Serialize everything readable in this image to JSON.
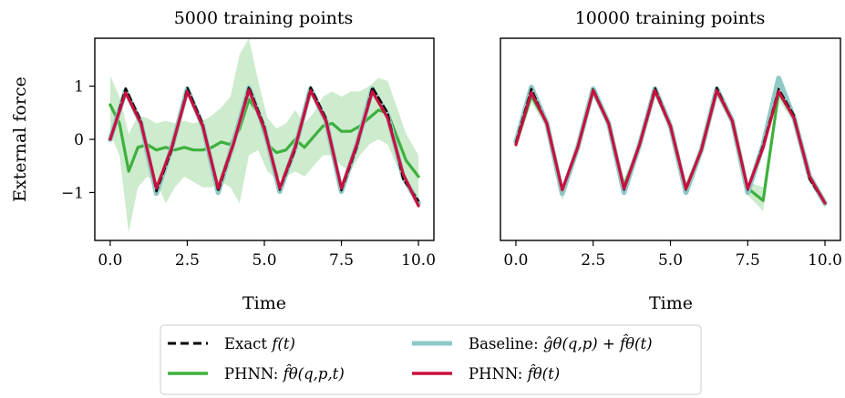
{
  "chart_data": [
    {
      "type": "line",
      "title": "5000 training points",
      "xlabel": "Time",
      "ylabel": "External force",
      "xlim": [
        -0.5,
        10.5
      ],
      "ylim": [
        -1.9,
        1.9
      ],
      "xticks": [
        "0.0",
        "2.5",
        "5.0",
        "7.5",
        "10.0"
      ],
      "yticks": [
        "1",
        "0",
        "−1"
      ],
      "series": [
        {
          "name": "Exact f(t)",
          "key": "exact",
          "x": [
            0,
            0.5,
            1.0,
            1.5,
            2.0,
            2.5,
            3.0,
            3.5,
            4.0,
            4.5,
            5.0,
            5.5,
            6.0,
            6.5,
            7.0,
            7.5,
            8.0,
            8.5,
            9.0,
            9.5,
            10.0
          ],
          "y": [
            0,
            0.96,
            0.35,
            -0.98,
            -0.2,
            0.97,
            0.3,
            -0.98,
            -0.1,
            0.99,
            0.25,
            -0.95,
            -0.2,
            0.98,
            0.4,
            -0.96,
            -0.15,
            0.98,
            0.5,
            -0.75,
            -1.15
          ]
        },
        {
          "name": "Baseline: ĝθ(q,p) + f̂θ(t)",
          "key": "baseline",
          "x": [
            0,
            0.5,
            1.0,
            1.5,
            2.0,
            2.5,
            3.0,
            3.5,
            4.0,
            4.5,
            5.0,
            5.5,
            6.0,
            6.5,
            7.0,
            7.5,
            8.0,
            8.5,
            9.0,
            9.5,
            10.0
          ],
          "y": [
            0,
            0.92,
            0.3,
            -1.02,
            -0.15,
            0.95,
            0.25,
            -1.0,
            -0.05,
            0.97,
            0.2,
            -0.98,
            -0.15,
            0.95,
            0.35,
            -0.98,
            -0.1,
            0.95,
            0.45,
            -0.7,
            -1.2
          ]
        },
        {
          "name": "PHNN: f̂θ(q,p,t)",
          "key": "phnn_qpt",
          "x": [
            0,
            0.3,
            0.6,
            0.9,
            1.2,
            1.5,
            1.8,
            2.1,
            2.4,
            2.7,
            3.0,
            3.3,
            3.6,
            3.9,
            4.2,
            4.5,
            4.8,
            5.1,
            5.4,
            5.7,
            6.0,
            6.3,
            6.6,
            6.9,
            7.2,
            7.5,
            7.8,
            8.1,
            8.4,
            8.7,
            9.0,
            9.3,
            9.6,
            10.0
          ],
          "y": [
            0.65,
            0.3,
            -0.6,
            -0.15,
            -0.1,
            -0.2,
            -0.15,
            -0.2,
            -0.15,
            -0.2,
            -0.2,
            -0.15,
            -0.05,
            -0.1,
            0.2,
            0.75,
            0.5,
            -0.1,
            -0.25,
            -0.2,
            0.0,
            -0.15,
            0.05,
            0.25,
            0.3,
            0.15,
            0.15,
            0.25,
            0.4,
            0.55,
            0.5,
            0.05,
            -0.4,
            -0.7
          ]
        },
        {
          "name": "PHNN: f̂θ(t)",
          "key": "phnn_t",
          "x": [
            0,
            0.5,
            1.0,
            1.5,
            2.0,
            2.5,
            3.0,
            3.5,
            4.0,
            4.5,
            5.0,
            5.5,
            6.0,
            6.5,
            7.0,
            7.5,
            8.0,
            8.5,
            9.0,
            9.5,
            10.0
          ],
          "y": [
            0,
            0.88,
            0.3,
            -0.92,
            -0.15,
            0.9,
            0.25,
            -0.92,
            -0.08,
            0.93,
            0.2,
            -0.92,
            -0.15,
            0.92,
            0.35,
            -0.92,
            -0.1,
            0.9,
            0.4,
            -0.65,
            -1.25
          ]
        }
      ],
      "band": {
        "key": "phnn_qpt_band",
        "x": [
          0,
          0.3,
          0.6,
          0.9,
          1.2,
          1.5,
          1.8,
          2.1,
          2.4,
          2.7,
          3.0,
          3.3,
          3.6,
          3.9,
          4.2,
          4.5,
          4.8,
          5.1,
          5.4,
          5.7,
          6.0,
          6.3,
          6.6,
          6.9,
          7.2,
          7.5,
          7.8,
          8.1,
          8.4,
          8.7,
          9.0,
          9.3,
          9.6,
          10.0
        ],
        "upper": [
          1.2,
          0.8,
          0.1,
          0.45,
          0.4,
          0.3,
          0.35,
          0.3,
          0.35,
          0.3,
          0.35,
          0.45,
          0.6,
          0.8,
          1.6,
          1.9,
          1.1,
          0.4,
          0.2,
          0.3,
          0.55,
          0.3,
          0.5,
          0.8,
          0.9,
          0.8,
          0.9,
          0.9,
          1.0,
          1.15,
          1.1,
          0.6,
          0.1,
          -0.3
        ],
        "lower": [
          0.1,
          -0.3,
          -1.75,
          -0.9,
          -0.7,
          -0.8,
          -1.2,
          -0.9,
          -0.7,
          -0.8,
          -0.9,
          -0.9,
          -0.8,
          -0.9,
          -1.2,
          -0.3,
          -0.2,
          -0.6,
          -0.75,
          -0.7,
          -0.6,
          -0.7,
          -0.5,
          -0.3,
          -0.3,
          -0.5,
          -0.6,
          -0.3,
          -0.1,
          0.0,
          -0.1,
          -0.5,
          -0.9,
          -1.1
        ]
      }
    },
    {
      "type": "line",
      "title": "10000 training points",
      "xlabel": "Time",
      "ylabel": "",
      "xlim": [
        -0.5,
        10.5
      ],
      "ylim": [
        -1.9,
        1.9
      ],
      "xticks": [
        "0.0",
        "2.5",
        "5.0",
        "7.5",
        "10.0"
      ],
      "series": [
        {
          "name": "Exact f(t)",
          "key": "exact",
          "x": [
            0,
            0.5,
            1.0,
            1.5,
            2.0,
            2.5,
            3.0,
            3.5,
            4.0,
            4.5,
            5.0,
            5.5,
            6.0,
            6.5,
            7.0,
            7.5,
            8.0,
            8.5,
            9.0,
            9.5,
            10.0
          ],
          "y": [
            -0.05,
            0.95,
            0.3,
            -0.95,
            -0.15,
            0.95,
            0.3,
            -0.95,
            -0.1,
            0.97,
            0.25,
            -0.95,
            -0.2,
            0.97,
            0.35,
            -0.95,
            -0.1,
            0.95,
            0.45,
            -0.75,
            -1.2
          ]
        },
        {
          "name": "Baseline: ĝθ(q,p) + f̂θ(t)",
          "key": "baseline",
          "x": [
            0,
            0.5,
            1.0,
            1.5,
            2.0,
            2.5,
            3.0,
            3.5,
            4.0,
            4.5,
            5.0,
            5.5,
            6.0,
            6.5,
            7.0,
            7.5,
            8.0,
            8.5,
            9.0,
            9.5,
            10.0
          ],
          "y": [
            -0.05,
            0.98,
            0.3,
            -1.02,
            -0.15,
            0.95,
            0.3,
            -1.0,
            -0.1,
            0.95,
            0.25,
            -1.0,
            -0.2,
            0.95,
            0.35,
            -1.0,
            -0.1,
            1.15,
            0.4,
            -0.7,
            -1.2
          ]
        },
        {
          "name": "PHNN: f̂θ(q,p,t)",
          "key": "phnn_qpt",
          "x": [
            0,
            0.5,
            1.0,
            1.5,
            2.0,
            2.5,
            3.0,
            3.5,
            4.0,
            4.5,
            5.0,
            5.5,
            6.0,
            6.5,
            7.0,
            7.5,
            8.0,
            8.5,
            9.0,
            9.5,
            10.0
          ],
          "y": [
            -0.1,
            0.82,
            0.3,
            -1.0,
            -0.15,
            0.9,
            0.3,
            -0.88,
            -0.1,
            0.93,
            0.25,
            -0.92,
            -0.2,
            0.9,
            0.35,
            -0.92,
            -1.15,
            0.88,
            0.4,
            -0.7,
            -1.2
          ]
        },
        {
          "name": "PHNN: f̂θ(t)",
          "key": "phnn_t",
          "x": [
            0,
            0.5,
            1.0,
            1.5,
            2.0,
            2.5,
            3.0,
            3.5,
            4.0,
            4.5,
            5.0,
            5.5,
            6.0,
            6.5,
            7.0,
            7.5,
            8.0,
            8.5,
            9.0,
            9.5,
            10.0
          ],
          "y": [
            -0.1,
            0.88,
            0.3,
            -0.95,
            -0.15,
            0.92,
            0.3,
            -0.93,
            -0.1,
            0.92,
            0.25,
            -0.93,
            -0.2,
            0.92,
            0.35,
            -0.93,
            -0.15,
            0.9,
            0.4,
            -0.7,
            -1.2
          ]
        }
      ],
      "band": {
        "key": "phnn_qpt_band",
        "x": [
          0,
          0.5,
          1.0,
          1.5,
          2.0,
          2.5,
          3.0,
          3.5,
          4.0,
          4.5,
          5.0,
          5.5,
          6.0,
          6.5,
          7.0,
          7.5,
          8.0,
          8.5,
          9.0,
          9.5,
          10.0
        ],
        "upper": [
          0.0,
          0.95,
          0.4,
          -0.85,
          -0.05,
          1.0,
          0.4,
          -0.75,
          0.0,
          1.0,
          0.35,
          -0.8,
          -0.1,
          1.0,
          0.45,
          -0.8,
          -0.9,
          1.0,
          0.5,
          -0.6,
          -1.1
        ],
        "lower": [
          -0.2,
          0.7,
          0.2,
          -1.15,
          -0.25,
          0.8,
          0.2,
          -1.0,
          -0.2,
          0.85,
          0.15,
          -1.05,
          -0.3,
          0.8,
          0.25,
          -1.05,
          -1.35,
          0.75,
          0.3,
          -0.8,
          -1.3
        ]
      }
    }
  ],
  "colors": {
    "exact": "#000000",
    "baseline": "#8fc9c6",
    "phnn_qpt": "#3db03d",
    "phnn_t": "#c8103e",
    "band": "#cdebcd"
  },
  "legend": {
    "exact": {
      "text": "Exact ",
      "math": "f(t)"
    },
    "baseline": {
      "text": "Baseline: ",
      "math": "ĝθ(q,p) + f̂θ(t)"
    },
    "phnn_qpt": {
      "text": "PHNN: ",
      "math": "f̂θ(q,p,t)"
    },
    "phnn_t": {
      "text": "PHNN: ",
      "math": "f̂θ(t)"
    }
  }
}
